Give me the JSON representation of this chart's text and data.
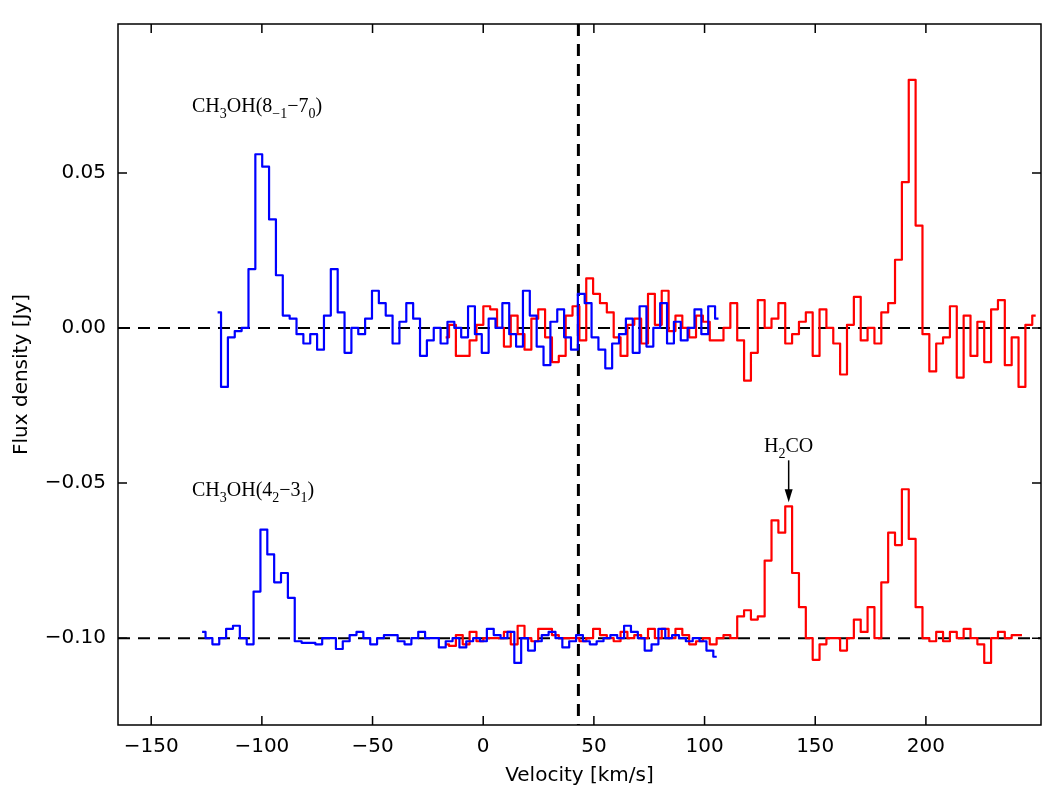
{
  "chart_data": {
    "type": "step",
    "xlabel": "Velocity [km/s]",
    "ylabel": "Flux density [Jy]",
    "xlim": [
      -165,
      252
    ],
    "ylim": [
      -0.128,
      0.098
    ],
    "xticks": [
      {
        "value": -150,
        "label": "−150"
      },
      {
        "value": -100,
        "label": "−100"
      },
      {
        "value": -50,
        "label": "−50"
      },
      0,
      50,
      100,
      150,
      200
    ],
    "yticks": [
      {
        "value": -0.1,
        "label": "−0.10"
      },
      {
        "value": -0.05,
        "label": "−0.05"
      },
      {
        "value": 0,
        "label": "0.00"
      },
      {
        "value": 0.05,
        "label": "0.05"
      }
    ],
    "grid": false,
    "ref_lines": [
      {
        "axis": "y",
        "value": 0,
        "color": "#000000",
        "line_style": "dashed"
      },
      {
        "axis": "y",
        "value": -0.1,
        "color": "#000000",
        "line_style": "dashed"
      },
      {
        "axis": "x",
        "value": 43,
        "color": "#000000",
        "line_style": "dashed"
      }
    ],
    "annotations": [
      "CH$_{3}$OH(8$_{−1}$−7$_{0}$)",
      "CH$_{3}$OH(4$_{2}$−3$_{1}$)",
      {
        "text": "H$_{2}$CO",
        "x": 138,
        "y": -0.0575
      }
    ],
    "series": [
      {
        "color": "#0000ff",
        "x": [
          -120,
          -116.9,
          -113.8,
          -110.7,
          -107.6,
          -104.5,
          -101.4,
          -98.3,
          -95.2,
          -92.1,
          -89,
          -85.9,
          -82.8,
          -79.7,
          -76.6,
          -73.5,
          -70.4,
          -67.3,
          -64.2,
          -61.1,
          -58,
          -54.9,
          -51.8,
          -48.7,
          -45.6,
          -42.5,
          -39.4,
          -36.3,
          -33.2,
          -30.1,
          -27,
          -23.9,
          -20.8,
          -17.7,
          -14.6,
          -11.5,
          -8.4,
          -5.3,
          -2.2,
          0.9,
          4,
          7.1,
          10.2,
          13.3,
          16.4,
          19.5,
          22.6,
          25.7,
          28.8,
          31.9,
          35,
          38.1,
          41.2,
          44.3,
          47.4,
          50.5,
          53.6,
          56.7,
          59.8,
          62.9,
          66,
          69.1,
          72.2,
          75.3,
          78.4,
          81.5,
          84.6,
          87.7,
          90.8,
          93.9,
          97,
          100.1,
          103.2,
          106.3
        ],
        "values": [
          0.005,
          -0.019,
          -0.003,
          -0.001,
          0,
          0.019,
          0.056,
          0.052,
          0.035,
          0.017,
          0.004,
          0.003,
          -0.002,
          -0.005,
          -0.002,
          -0.007,
          0.004,
          0.019,
          0.005,
          -0.008,
          0,
          -0.002,
          0.003,
          0.012,
          0.008,
          0.004,
          -0.005,
          0.002,
          0.008,
          0.003,
          -0.009,
          -0.004,
          0,
          -0.005,
          0.002,
          0,
          -0.003,
          0.007,
          -0.002,
          -0.008,
          0.003,
          0,
          0.008,
          -0.002,
          -0.006,
          0.012,
          0.004,
          -0.006,
          -0.012,
          0.002,
          0.006,
          -0.003,
          -0.007,
          0.011,
          0.008,
          -0.003,
          -0.007,
          -0.013,
          -0.005,
          -0.002,
          0.003,
          -0.008,
          0.007,
          -0.006,
          0,
          0.008,
          -0.005,
          0.002,
          -0.004,
          0,
          0.006,
          -0.002,
          0.007,
          0.003
        ]
      },
      {
        "color": "#ff0000",
        "x": [
          -17,
          -13.9,
          -10.8,
          -7.7,
          -4.6,
          -1.5,
          1.6,
          4.7,
          7.8,
          10.9,
          14,
          17.1,
          20.2,
          23.3,
          26.4,
          29.5,
          32.6,
          35.7,
          38.8,
          41.9,
          45,
          48.1,
          51.2,
          54.3,
          57.4,
          60.5,
          63.6,
          66.7,
          69.8,
          72.9,
          76,
          79.1,
          82.2,
          85.3,
          88.4,
          91.5,
          94.6,
          97.7,
          100.8,
          103.9,
          107,
          110.1,
          113.2,
          116.3,
          119.4,
          122.5,
          125.6,
          128.7,
          131.8,
          134.9,
          138,
          141.1,
          144.2,
          147.3,
          150.4,
          153.5,
          156.6,
          159.7,
          162.8,
          165.9,
          169,
          172.1,
          175.2,
          178.3,
          181.4,
          184.5,
          187.6,
          190.7,
          193.8,
          196.9,
          200,
          203.1,
          206.2,
          209.3,
          212.4,
          215.5,
          218.6,
          221.7,
          224.8,
          227.9,
          231,
          234.1,
          237.2,
          240.3,
          243.4,
          246.5,
          249.6
        ],
        "values": [
          -0.003,
          0.001,
          -0.009,
          -0.009,
          -0.004,
          0.001,
          0.007,
          0.006,
          0,
          -0.006,
          0.004,
          -0.002,
          -0.007,
          0.003,
          0.006,
          -0.003,
          -0.011,
          -0.009,
          0.004,
          0.007,
          -0.004,
          0.016,
          0.011,
          0.008,
          0.005,
          -0.003,
          -0.009,
          0.001,
          0.003,
          -0.005,
          0.011,
          0.001,
          0.012,
          -0.001,
          0.004,
          0,
          -0.003,
          0.004,
          0.002,
          -0.004,
          -0.004,
          0,
          0.008,
          -0.004,
          -0.017,
          -0.008,
          0.009,
          0,
          0.003,
          0.008,
          -0.005,
          -0.002,
          0.002,
          0.005,
          -0.009,
          0.006,
          0,
          -0.005,
          -0.015,
          0.001,
          0.01,
          -0.004,
          0,
          -0.005,
          0.005,
          0.008,
          0.022,
          0.047,
          0.08,
          0.033,
          -0.002,
          -0.014,
          -0.005,
          -0.003,
          0.007,
          -0.016,
          0.004,
          -0.009,
          0.002,
          -0.011,
          0.006,
          0.009,
          -0.012,
          -0.003,
          -0.019,
          0.001,
          0.004
        ]
      },
      {
        "color": "#0000ff",
        "x": [
          -127,
          -123.9,
          -120.8,
          -117.7,
          -114.6,
          -111.5,
          -108.4,
          -105.3,
          -102.2,
          -99.1,
          -96,
          -92.9,
          -89.8,
          -86.7,
          -83.6,
          -80.5,
          -77.4,
          -74.3,
          -71.2,
          -68.1,
          -65,
          -61.9,
          -58.8,
          -55.7,
          -52.6,
          -49.5,
          -46.4,
          -43.3,
          -40.2,
          -37.1,
          -34,
          -30.9,
          -27.8,
          -24.7,
          -21.6,
          -18.5,
          -15.4,
          -12.3,
          -9.2,
          -6.1,
          -3,
          0.1,
          3.2,
          6.3,
          9.4,
          12.5,
          15.6,
          18.7,
          21.8,
          24.9,
          28,
          31.1,
          34.2,
          37.3,
          40.4,
          43.5,
          46.6,
          49.7,
          52.8,
          55.9,
          59,
          62.1,
          65.2,
          68.3,
          71.4,
          74.5,
          77.6,
          80.7,
          83.8,
          86.9,
          90,
          93.1,
          96.2,
          99.3,
          102.4,
          105.5
        ],
        "values": [
          -0.098,
          -0.1,
          -0.102,
          -0.1,
          -0.097,
          -0.096,
          -0.1,
          -0.102,
          -0.085,
          -0.065,
          -0.073,
          -0.082,
          -0.079,
          -0.087,
          -0.101,
          -0.1015,
          -0.1015,
          -0.102,
          -0.1,
          -0.1,
          -0.1035,
          -0.101,
          -0.099,
          -0.098,
          -0.1,
          -0.102,
          -0.1,
          -0.099,
          -0.099,
          -0.101,
          -0.102,
          -0.1,
          -0.098,
          -0.1,
          -0.1,
          -0.103,
          -0.101,
          -0.1,
          -0.103,
          -0.101,
          -0.1,
          -0.101,
          -0.097,
          -0.099,
          -0.1,
          -0.098,
          -0.108,
          -0.1,
          -0.104,
          -0.101,
          -0.099,
          -0.098,
          -0.1,
          -0.103,
          -0.101,
          -0.099,
          -0.101,
          -0.102,
          -0.101,
          -0.1,
          -0.099,
          -0.1,
          -0.096,
          -0.098,
          -0.1,
          -0.104,
          -0.102,
          -0.097,
          -0.1,
          -0.099,
          -0.1,
          -0.101,
          -0.1,
          -0.101,
          -0.104,
          -0.106
        ]
      },
      {
        "color": "#ff0000",
        "x": [
          -17,
          -13.9,
          -10.8,
          -7.7,
          -4.6,
          -1.5,
          1.6,
          4.7,
          7.8,
          10.9,
          14,
          17.1,
          20.2,
          23.3,
          26.4,
          29.5,
          32.6,
          35.7,
          38.8,
          41.9,
          45,
          48.1,
          51.2,
          54.3,
          57.4,
          60.5,
          63.6,
          66.7,
          69.8,
          72.9,
          76,
          79.1,
          82.2,
          85.3,
          88.4,
          91.5,
          94.6,
          97.7,
          100.8,
          103.9,
          107,
          110.1,
          113.2,
          116.3,
          119.4,
          122.5,
          125.6,
          128.7,
          131.8,
          134.9,
          138,
          141.1,
          144.2,
          147.3,
          150.4,
          153.5,
          156.6,
          159.7,
          162.8,
          165.9,
          169,
          172.1,
          175.2,
          178.3,
          181.4,
          184.5,
          187.6,
          190.7,
          193.8,
          196.9,
          200,
          203.1,
          206.2,
          209.3,
          212.4,
          215.5,
          218.6,
          221.7,
          224.8,
          227.9,
          231,
          234.1,
          237.2,
          240.3,
          243.4
        ],
        "values": [
          -0.102,
          -0.1025,
          -0.099,
          -0.102,
          -0.098,
          -0.101,
          -0.1,
          -0.1,
          -0.1,
          -0.098,
          -0.102,
          -0.096,
          -0.1,
          -0.101,
          -0.097,
          -0.097,
          -0.099,
          -0.1,
          -0.1,
          -0.1,
          -0.101,
          -0.1,
          -0.097,
          -0.099,
          -0.1,
          -0.101,
          -0.098,
          -0.1,
          -0.099,
          -0.1,
          -0.097,
          -0.1,
          -0.097,
          -0.1,
          -0.097,
          -0.099,
          -0.102,
          -0.101,
          -0.1,
          -0.102,
          -0.1,
          -0.099,
          -0.1,
          -0.093,
          -0.091,
          -0.094,
          -0.093,
          -0.075,
          -0.062,
          -0.066,
          -0.0575,
          -0.079,
          -0.09,
          -0.1,
          -0.107,
          -0.102,
          -0.1,
          -0.1,
          -0.104,
          -0.1,
          -0.094,
          -0.098,
          -0.09,
          -0.1,
          -0.082,
          -0.066,
          -0.07,
          -0.052,
          -0.068,
          -0.09,
          -0.1,
          -0.101,
          -0.098,
          -0.101,
          -0.098,
          -0.1,
          -0.097,
          -0.1,
          -0.102,
          -0.108,
          -0.1,
          -0.098,
          -0.1,
          -0.099,
          -0.099
        ]
      }
    ]
  }
}
